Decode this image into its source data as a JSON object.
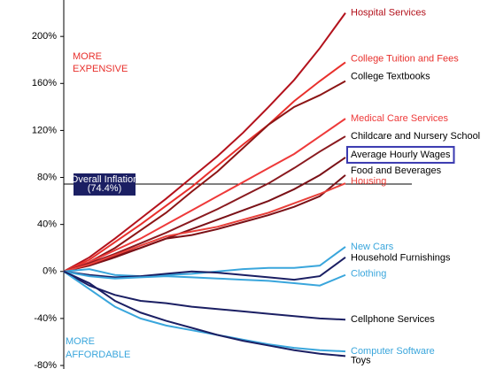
{
  "chart_data": {
    "type": "line",
    "categories": [
      null,
      null,
      null,
      null,
      null,
      null,
      null,
      null,
      null,
      null,
      null,
      null
    ],
    "ylim": [
      -83,
      231
    ],
    "yticks": [
      {
        "value": -80,
        "label": "-80%"
      },
      {
        "value": -40,
        "label": "-40%"
      },
      {
        "value": 0,
        "label": "0%"
      },
      {
        "value": 40,
        "label": "40%"
      },
      {
        "value": 80,
        "label": "80%"
      },
      {
        "value": 120,
        "label": "120%"
      },
      {
        "value": 160,
        "label": "160%"
      },
      {
        "value": 200,
        "label": "200%"
      }
    ],
    "annotations": {
      "expensive": [
        "MORE",
        "EXPENSIVE"
      ],
      "affordable": [
        "MORE",
        "AFFORDABLE"
      ]
    },
    "inflation": {
      "value": 74.4,
      "label": [
        "Overall Inflation",
        "(74.4%)"
      ]
    },
    "series": [
      {
        "name": "Hospital Services",
        "color": "#b3121c",
        "values": [
          0,
          12,
          28,
          45,
          62,
          80,
          98,
          118,
          140,
          163,
          190,
          220
        ]
      },
      {
        "name": "College Tuition and Fees",
        "color": "#e8302c",
        "values": [
          0,
          10,
          25,
          40,
          56,
          72,
          90,
          108,
          125,
          145,
          162,
          178
        ]
      },
      {
        "name": "College Textbooks",
        "color": "#8c1515",
        "values": [
          0,
          8,
          20,
          35,
          50,
          68,
          85,
          105,
          125,
          140,
          150,
          162
        ]
      },
      {
        "name": "Medical Care Services",
        "color": "#ee3a3a",
        "values": [
          0,
          8,
          18,
          28,
          40,
          52,
          64,
          76,
          88,
          100,
          115,
          130
        ]
      },
      {
        "name": "Childcare and Nursery School",
        "color": "#8a1a1f",
        "values": [
          0,
          7,
          15,
          24,
          33,
          43,
          53,
          64,
          75,
          88,
          102,
          115
        ]
      },
      {
        "name": "Average Hourly Wages",
        "color": "#7a1117",
        "values": [
          0,
          6,
          13,
          20,
          28,
          36,
          44,
          52,
          60,
          70,
          82,
          97
        ]
      },
      {
        "name": "Food and Beverages",
        "color": "#7a1117",
        "values": [
          0,
          5,
          12,
          20,
          28,
          31,
          36,
          42,
          48,
          55,
          64,
          82
        ]
      },
      {
        "name": "Housing",
        "color": "#e8403a",
        "values": [
          0,
          6,
          14,
          22,
          30,
          34,
          38,
          44,
          50,
          58,
          66,
          75
        ]
      },
      {
        "name": "New Cars",
        "color": "#3aa6dc",
        "values": [
          0,
          2,
          -3,
          -4,
          -3,
          -2,
          0,
          2,
          3,
          3,
          5,
          21
        ]
      },
      {
        "name": "Household Furnishings",
        "color": "#1b1f63",
        "values": [
          0,
          -3,
          -5,
          -4,
          -2,
          0,
          -1,
          -3,
          -5,
          -7,
          -4,
          12
        ]
      },
      {
        "name": "Clothing",
        "color": "#3aa6dc",
        "values": [
          0,
          -4,
          -6,
          -5,
          -4,
          -5,
          -6,
          -7,
          -8,
          -10,
          -12,
          -3
        ]
      },
      {
        "name": "Cellphone Services",
        "color": "#1b1f63",
        "values": [
          0,
          -12,
          -20,
          -25,
          -27,
          -30,
          -32,
          -34,
          -36,
          -38,
          -40,
          -41
        ]
      },
      {
        "name": "Computer Software",
        "color": "#3aa6dc",
        "values": [
          0,
          -15,
          -30,
          -40,
          -46,
          -50,
          -54,
          -58,
          -62,
          -65,
          -67,
          -68
        ]
      },
      {
        "name": "Toys",
        "color": "#1b1f63",
        "values": [
          0,
          -10,
          -25,
          -35,
          -42,
          -48,
          -54,
          -59,
          -63,
          -67,
          -70,
          -72
        ]
      }
    ]
  }
}
